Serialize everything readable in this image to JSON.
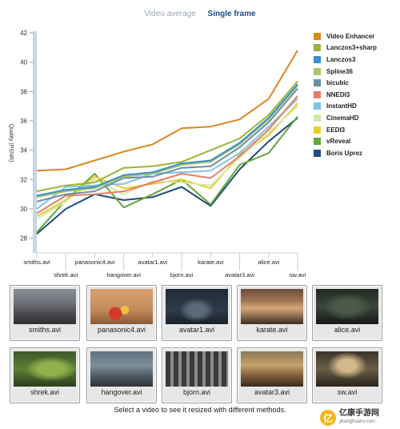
{
  "tabs": {
    "average": "Video average",
    "single": "Single frame"
  },
  "chart_data": {
    "type": "line",
    "ylabel": "Quality (PSNR)",
    "ylim": [
      27,
      42
    ],
    "yticks": [
      28,
      30,
      32,
      34,
      36,
      38,
      40,
      42
    ],
    "grid": false,
    "legend_position": "right",
    "categories": [
      "smiths.avi",
      "shrek.avi",
      "panasonic4.avi",
      "hangover.avi",
      "avatar1.avi",
      "bjorn.avi",
      "karate.avi",
      "avatar3.avi",
      "alice.avi",
      "sw.avi"
    ],
    "series": [
      {
        "name": "Video Enhancer",
        "color": "#d88a1f",
        "values": [
          32.6,
          32.7,
          33.3,
          33.9,
          34.4,
          35.5,
          35.6,
          36.1,
          37.5,
          40.8
        ]
      },
      {
        "name": "Lanczos3+sharp",
        "color": "#9ab53a",
        "values": [
          31.2,
          31.6,
          31.8,
          32.8,
          32.9,
          33.2,
          34.0,
          34.8,
          36.4,
          38.7
        ]
      },
      {
        "name": "Lanczos3",
        "color": "#3a8fc6",
        "values": [
          30.9,
          31.3,
          31.5,
          32.3,
          32.5,
          33.1,
          33.3,
          34.5,
          36.2,
          38.5
        ]
      },
      {
        "name": "Spline36",
        "color": "#a9c56a",
        "values": [
          30.8,
          31.2,
          31.4,
          32.2,
          32.4,
          33.0,
          33.2,
          34.4,
          36.1,
          38.4
        ]
      },
      {
        "name": "bicubic",
        "color": "#6e8ea6",
        "values": [
          30.5,
          31.0,
          31.2,
          32.1,
          32.2,
          32.8,
          32.9,
          34.2,
          35.9,
          38.2
        ]
      },
      {
        "name": "NNEDI3",
        "color": "#e67d6a",
        "values": [
          29.7,
          30.9,
          31.0,
          31.2,
          31.8,
          32.4,
          32.1,
          33.6,
          35.4,
          37.7
        ]
      },
      {
        "name": "InstantHD",
        "color": "#7fc3e0",
        "values": [
          30.0,
          31.5,
          31.6,
          31.7,
          32.4,
          32.5,
          32.6,
          33.8,
          35.6,
          37.5
        ]
      },
      {
        "name": "CinemaHD",
        "color": "#d4e9a9",
        "values": [
          29.3,
          30.5,
          32.0,
          31.0,
          31.9,
          31.8,
          31.6,
          33.5,
          35.2,
          37.0
        ]
      },
      {
        "name": "EEDI3",
        "color": "#e8cf2e",
        "values": [
          29.5,
          30.6,
          32.2,
          31.4,
          31.7,
          32.0,
          31.4,
          33.7,
          35.0,
          37.2
        ]
      },
      {
        "name": "vReveal",
        "color": "#64a63a",
        "values": [
          28.4,
          30.6,
          32.4,
          30.1,
          31.0,
          32.0,
          30.3,
          33.0,
          33.8,
          36.3
        ]
      },
      {
        "name": "Boris Uprez",
        "color": "#1e4d7a",
        "values": [
          28.3,
          30.0,
          31.0,
          30.6,
          30.8,
          31.5,
          30.2,
          32.7,
          34.6,
          36.2
        ]
      }
    ]
  },
  "thumbnails": [
    {
      "label": "smiths.avi",
      "scene": "street"
    },
    {
      "label": "panasonic4.avi",
      "scene": "flowers"
    },
    {
      "label": "avatar1.avi",
      "scene": "dark-figure"
    },
    {
      "label": "karate.avi",
      "scene": "crowd"
    },
    {
      "label": "alice.avi",
      "scene": "dark-forest"
    },
    {
      "label": "shrek.avi",
      "scene": "green"
    },
    {
      "label": "hangover.avi",
      "scene": "people"
    },
    {
      "label": "bjorn.avi",
      "scene": "building"
    },
    {
      "label": "avatar3.avi",
      "scene": "crowd-warm"
    },
    {
      "label": "sw.avi",
      "scene": "interior"
    }
  ],
  "caption": "Select a video to see it resized with different methods.",
  "watermark": {
    "logo": "亿",
    "text": "亿康手游网",
    "sub": "ykanghuanv.com"
  }
}
